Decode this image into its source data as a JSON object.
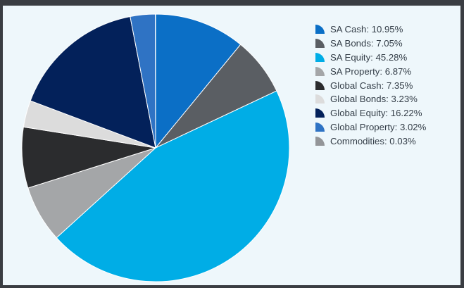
{
  "chart_data": {
    "type": "pie",
    "title": "",
    "start_angle_deg": 0,
    "direction": "clockwise",
    "legend_position": "right",
    "slices": [
      {
        "label": "SA Cash: 10.95%",
        "name": "SA Cash",
        "value": 10.95,
        "color": "#0b6fc6"
      },
      {
        "label": "SA Bonds: 7.05%",
        "name": "SA Bonds",
        "value": 7.05,
        "color": "#5a5e63"
      },
      {
        "label": "SA Equity: 45.28%",
        "name": "SA Equity",
        "value": 45.28,
        "color": "#00ade6"
      },
      {
        "label": "SA Property: 6.87%",
        "name": "SA Property",
        "value": 6.87,
        "color": "#a4a6a8"
      },
      {
        "label": "Global Cash: 7.35%",
        "name": "Global Cash",
        "value": 7.35,
        "color": "#2b2c2e"
      },
      {
        "label": "Global Bonds: 3.23%",
        "name": "Global Bonds",
        "value": 3.23,
        "color": "#dcdcdc"
      },
      {
        "label": "Global Equity: 16.22%",
        "name": "Global Equity",
        "value": 16.22,
        "color": "#03215a"
      },
      {
        "label": "Global Property: 3.02%",
        "name": "Global Property",
        "value": 3.02,
        "color": "#2f73c4"
      },
      {
        "label": "Commodities: 0.03%",
        "name": "Commodities",
        "value": 0.03,
        "color": "#939598"
      }
    ]
  }
}
